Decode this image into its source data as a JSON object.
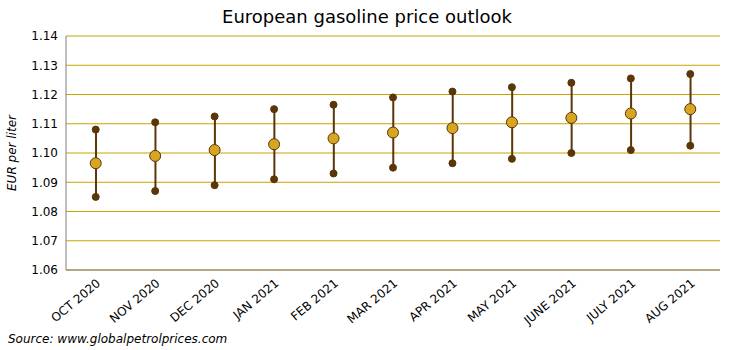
{
  "chart_data": {
    "type": "errorbar",
    "title": "European gasoline price outlook",
    "y_label": "EUR per liter",
    "source": "Source: www.globalpetrolprices.com",
    "categories": [
      "OCT 2020",
      "NOV 2020",
      "DEC 2020",
      "JAN 2021",
      "FEB 2021",
      "MAR 2021",
      "APR 2021",
      "MAY 2021",
      "JUNE 2021",
      "JULY 2021",
      "AUG 2021"
    ],
    "values": [
      1.0965,
      1.099,
      1.101,
      1.103,
      1.105,
      1.107,
      1.1085,
      1.1105,
      1.112,
      1.1135,
      1.115
    ],
    "low": [
      1.085,
      1.087,
      1.089,
      1.091,
      1.093,
      1.095,
      1.0965,
      1.098,
      1.1,
      1.101,
      1.1025
    ],
    "high": [
      1.108,
      1.1105,
      1.1125,
      1.115,
      1.1165,
      1.119,
      1.121,
      1.1225,
      1.124,
      1.1255,
      1.127
    ],
    "color": "#d9a521",
    "ylim": [
      1.06,
      1.14
    ],
    "yticks": [
      1.06,
      1.07,
      1.08,
      1.09,
      {
        "value": 1.1,
        "label": "1.10"
      },
      1.11,
      1.12,
      1.13,
      1.14
    ],
    "grid": true
  }
}
